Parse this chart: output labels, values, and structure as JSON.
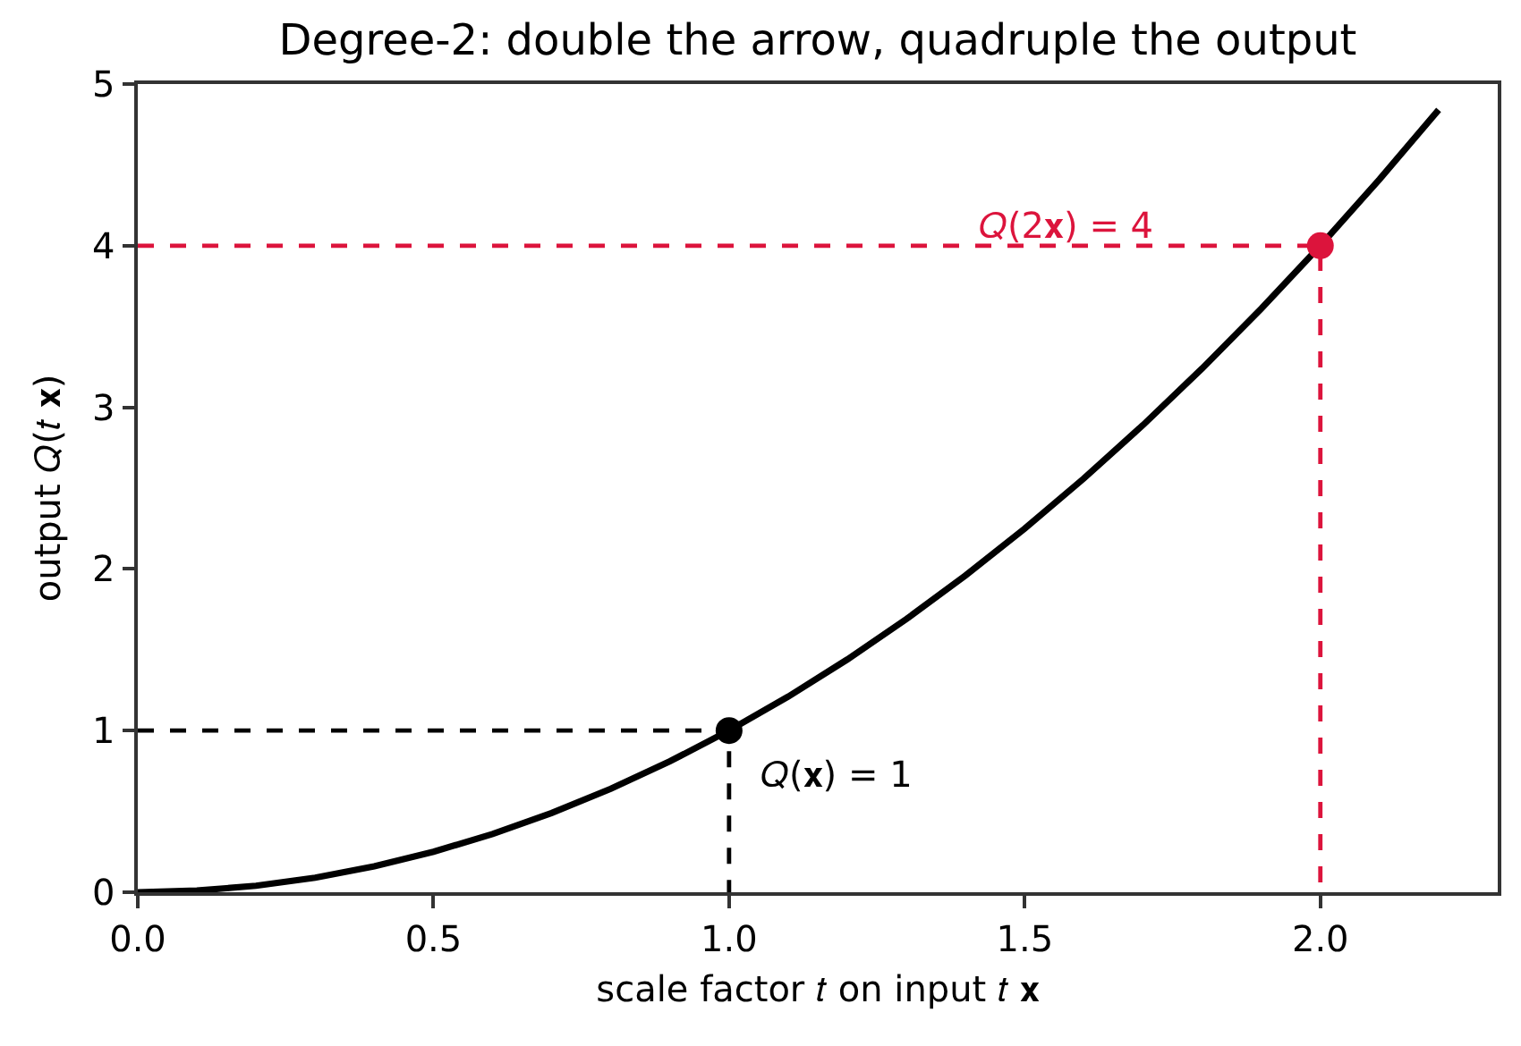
{
  "chart_data": {
    "type": "line",
    "title": "Degree-2: double the arrow, quadruple the output",
    "xlabel": "scale factor 𝑡 on input 𝑡 𝐱",
    "ylabel": "output 𝑄(𝑡 𝐱)",
    "series": [
      {
        "type": "line",
        "color": "#000000",
        "marker": "none",
        "line_style": "solid",
        "x": [
          0,
          0.1,
          0.2,
          0.3,
          0.4,
          0.5,
          0.6,
          0.7,
          0.8,
          0.9,
          1.0,
          1.1,
          1.2,
          1.3,
          1.4,
          1.5,
          1.6,
          1.7,
          1.8,
          1.9,
          2.0,
          2.1,
          2.2
        ],
        "values": [
          0,
          0.01,
          0.04,
          0.09,
          0.16,
          0.25,
          0.36,
          0.49,
          0.64,
          0.81,
          1.0,
          1.21,
          1.44,
          1.69,
          1.96,
          2.25,
          2.56,
          2.89,
          3.24,
          3.61,
          4.0,
          4.41,
          4.84
        ]
      },
      {
        "color": "#000000",
        "marker": "none",
        "line_style": "dashed",
        "x": [
          0,
          1,
          1
        ],
        "values": [
          1,
          1,
          0
        ]
      },
      {
        "color": "#dc143c",
        "marker": "none",
        "line_style": "dashed",
        "x": [
          0,
          2,
          2
        ],
        "values": [
          4,
          4,
          0
        ]
      },
      {
        "type": "scatter",
        "color": "#000000",
        "marker": "circle",
        "x": [
          1
        ],
        "values": [
          1
        ]
      },
      {
        "type": "scatter",
        "color": "#dc143c",
        "marker": "circle",
        "x": [
          2
        ],
        "values": [
          4
        ]
      }
    ],
    "annotations": [
      {
        "text": "𝑄(𝐱) = 1",
        "x": 1,
        "y": 1
      },
      {
        "text": "𝑄(2𝐱) = 4",
        "x": 1.57,
        "y": 4
      }
    ],
    "xlim": [
      0,
      2.3
    ],
    "xticks": [
      {
        "value": 0,
        "label": "0.0"
      },
      0.5,
      {
        "value": 1,
        "label": "1.0"
      },
      1.5,
      {
        "value": 2,
        "label": "2.0"
      }
    ],
    "ylim": [
      0,
      5
    ],
    "yticks": [
      0,
      1,
      2,
      3,
      4,
      5
    ],
    "grid": false
  }
}
